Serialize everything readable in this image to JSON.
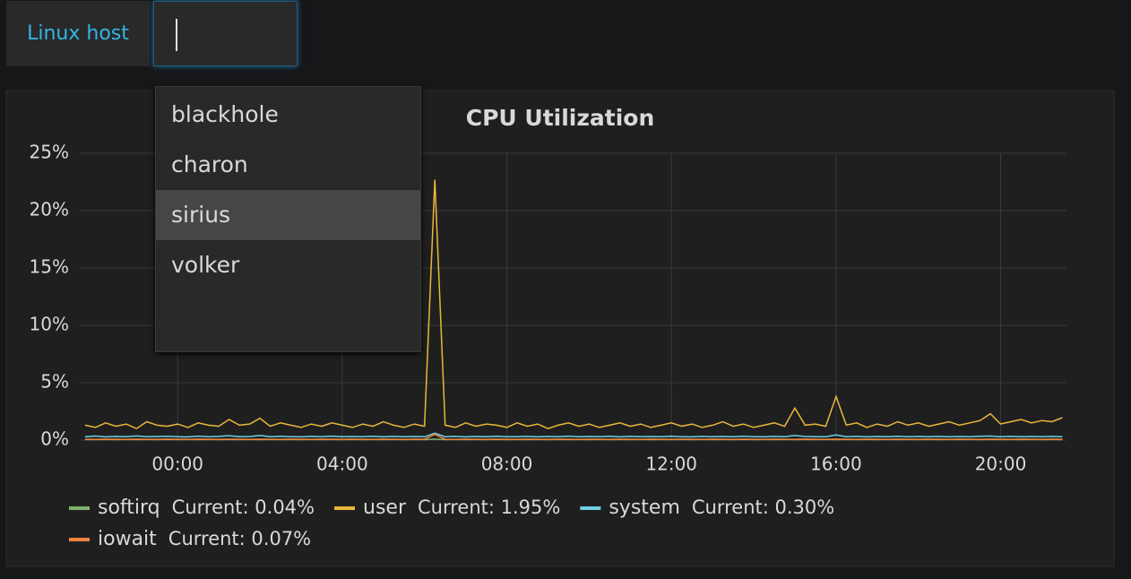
{
  "variable": {
    "label": "Linux host",
    "options": [
      "blackhole",
      "charon",
      "sirius",
      "volker"
    ],
    "highlighted_index": 2
  },
  "chart_data": {
    "type": "line",
    "title": "CPU Utilization",
    "x": [
      -2.25,
      -2,
      -1.75,
      -1.5,
      -1.25,
      -1,
      -0.75,
      -0.5,
      -0.25,
      0,
      0.25,
      0.5,
      0.75,
      1,
      1.25,
      1.5,
      1.75,
      2,
      2.25,
      2.5,
      2.75,
      3,
      3.25,
      3.5,
      3.75,
      4,
      4.25,
      4.5,
      4.75,
      5,
      5.25,
      5.5,
      5.75,
      6,
      6.25,
      6.5,
      6.75,
      7,
      7.25,
      7.5,
      7.75,
      8,
      8.25,
      8.5,
      8.75,
      9,
      9.25,
      9.5,
      9.75,
      10,
      10.25,
      10.5,
      10.75,
      11,
      11.25,
      11.5,
      11.75,
      12,
      12.25,
      12.5,
      12.75,
      13,
      13.25,
      13.5,
      13.75,
      14,
      14.25,
      14.5,
      14.75,
      15,
      15.25,
      15.5,
      15.75,
      16,
      16.25,
      16.5,
      16.75,
      17,
      17.25,
      17.5,
      17.75,
      18,
      18.25,
      18.5,
      18.75,
      19,
      19.25,
      19.5,
      19.75,
      20,
      20.25,
      20.5,
      20.75,
      21,
      21.25,
      21.5
    ],
    "xlim": [
      -2.4,
      21.6
    ],
    "xticks": [
      {
        "value": 0,
        "label": "00:00"
      },
      {
        "value": 4,
        "label": "04:00"
      },
      {
        "value": 8,
        "label": "08:00"
      },
      {
        "value": 12,
        "label": "12:00"
      },
      {
        "value": 16,
        "label": "16:00"
      },
      {
        "value": 20,
        "label": "20:00"
      }
    ],
    "ylim": [
      0,
      25
    ],
    "yticks": [
      {
        "value": 0,
        "label": "0%"
      },
      {
        "value": 5,
        "label": "5%"
      },
      {
        "value": 10,
        "label": "10%"
      },
      {
        "value": 15,
        "label": "15%"
      },
      {
        "value": 20,
        "label": "20%"
      },
      {
        "value": 25,
        "label": "25%"
      }
    ],
    "grid": true,
    "series": [
      {
        "name": "softirq",
        "color": "#7eb26d",
        "current": {
          "value": 0.04,
          "label": "Current: 0.04%"
        },
        "values": [
          0.05,
          0.04,
          0.05,
          0.04,
          0.05,
          0.04,
          0.05,
          0.04,
          0.05,
          0.04,
          0.05,
          0.04,
          0.05,
          0.04,
          0.05,
          0.04,
          0.05,
          0.04,
          0.05,
          0.04,
          0.05,
          0.04,
          0.05,
          0.04,
          0.05,
          0.04,
          0.05,
          0.04,
          0.05,
          0.04,
          0.05,
          0.04,
          0.05,
          0.04,
          0.08,
          0.04,
          0.05,
          0.04,
          0.05,
          0.04,
          0.05,
          0.04,
          0.05,
          0.04,
          0.05,
          0.04,
          0.05,
          0.04,
          0.05,
          0.04,
          0.05,
          0.04,
          0.05,
          0.04,
          0.05,
          0.04,
          0.05,
          0.04,
          0.05,
          0.04,
          0.05,
          0.04,
          0.05,
          0.04,
          0.05,
          0.04,
          0.05,
          0.04,
          0.05,
          0.04,
          0.05,
          0.04,
          0.05,
          0.04,
          0.05,
          0.04,
          0.05,
          0.04,
          0.05,
          0.04,
          0.05,
          0.04,
          0.05,
          0.04,
          0.05,
          0.04,
          0.05,
          0.04,
          0.05,
          0.04,
          0.05,
          0.04,
          0.05,
          0.04,
          0.05,
          0.04
        ]
      },
      {
        "name": "user",
        "color": "#eab839",
        "current": {
          "value": 1.95,
          "label": "Current: 1.95%"
        },
        "values": [
          1.3,
          1.1,
          1.5,
          1.2,
          1.4,
          1.0,
          1.6,
          1.3,
          1.2,
          1.4,
          1.1,
          1.5,
          1.3,
          1.2,
          1.8,
          1.3,
          1.4,
          1.9,
          1.2,
          1.5,
          1.3,
          1.1,
          1.4,
          1.2,
          1.5,
          1.3,
          1.1,
          1.4,
          1.2,
          1.6,
          1.3,
          1.1,
          1.4,
          1.2,
          22.7,
          1.3,
          1.1,
          1.5,
          1.2,
          1.4,
          1.3,
          1.1,
          1.5,
          1.2,
          1.4,
          1.0,
          1.3,
          1.5,
          1.2,
          1.4,
          1.1,
          1.3,
          1.5,
          1.2,
          1.4,
          1.1,
          1.3,
          1.5,
          1.2,
          1.4,
          1.1,
          1.3,
          1.6,
          1.2,
          1.4,
          1.1,
          1.3,
          1.5,
          1.2,
          2.8,
          1.3,
          1.4,
          1.2,
          3.8,
          1.3,
          1.5,
          1.1,
          1.4,
          1.2,
          1.6,
          1.3,
          1.5,
          1.2,
          1.4,
          1.6,
          1.3,
          1.5,
          1.7,
          2.3,
          1.4,
          1.6,
          1.8,
          1.5,
          1.7,
          1.6,
          1.95
        ]
      },
      {
        "name": "system",
        "color": "#6ed0e0",
        "current": {
          "value": 0.3,
          "label": "Current: 0.30%"
        },
        "values": [
          0.3,
          0.35,
          0.28,
          0.32,
          0.3,
          0.36,
          0.29,
          0.31,
          0.33,
          0.3,
          0.27,
          0.34,
          0.3,
          0.32,
          0.38,
          0.3,
          0.31,
          0.4,
          0.29,
          0.33,
          0.3,
          0.28,
          0.32,
          0.3,
          0.34,
          0.29,
          0.31,
          0.3,
          0.33,
          0.28,
          0.32,
          0.3,
          0.31,
          0.29,
          0.6,
          0.3,
          0.32,
          0.28,
          0.31,
          0.3,
          0.33,
          0.29,
          0.3,
          0.32,
          0.28,
          0.31,
          0.3,
          0.34,
          0.29,
          0.31,
          0.3,
          0.33,
          0.28,
          0.32,
          0.3,
          0.31,
          0.29,
          0.33,
          0.3,
          0.28,
          0.32,
          0.3,
          0.31,
          0.29,
          0.33,
          0.3,
          0.28,
          0.32,
          0.3,
          0.4,
          0.31,
          0.29,
          0.3,
          0.45,
          0.3,
          0.32,
          0.28,
          0.31,
          0.3,
          0.33,
          0.29,
          0.31,
          0.3,
          0.32,
          0.28,
          0.31,
          0.3,
          0.33,
          0.35,
          0.3,
          0.32,
          0.29,
          0.31,
          0.3,
          0.32,
          0.3
        ]
      },
      {
        "name": "iowait",
        "color": "#ef843c",
        "current": {
          "value": 0.07,
          "label": "Current: 0.07%"
        },
        "values": [
          0.07,
          0.06,
          0.08,
          0.07,
          0.06,
          0.08,
          0.07,
          0.06,
          0.08,
          0.07,
          0.06,
          0.08,
          0.07,
          0.06,
          0.08,
          0.07,
          0.06,
          0.08,
          0.07,
          0.06,
          0.08,
          0.07,
          0.06,
          0.08,
          0.07,
          0.06,
          0.08,
          0.07,
          0.06,
          0.08,
          0.07,
          0.06,
          0.08,
          0.07,
          0.5,
          0.07,
          0.06,
          0.08,
          0.07,
          0.06,
          0.08,
          0.07,
          0.06,
          0.08,
          0.07,
          0.06,
          0.08,
          0.07,
          0.06,
          0.08,
          0.07,
          0.06,
          0.08,
          0.07,
          0.06,
          0.08,
          0.07,
          0.06,
          0.08,
          0.07,
          0.06,
          0.08,
          0.07,
          0.06,
          0.08,
          0.07,
          0.06,
          0.08,
          0.07,
          0.06,
          0.08,
          0.07,
          0.06,
          0.08,
          0.07,
          0.06,
          0.08,
          0.07,
          0.06,
          0.08,
          0.07,
          0.06,
          0.08,
          0.07,
          0.06,
          0.08,
          0.07,
          0.06,
          0.08,
          0.07,
          0.06,
          0.08,
          0.07,
          0.06,
          0.08,
          0.07
        ]
      }
    ]
  }
}
